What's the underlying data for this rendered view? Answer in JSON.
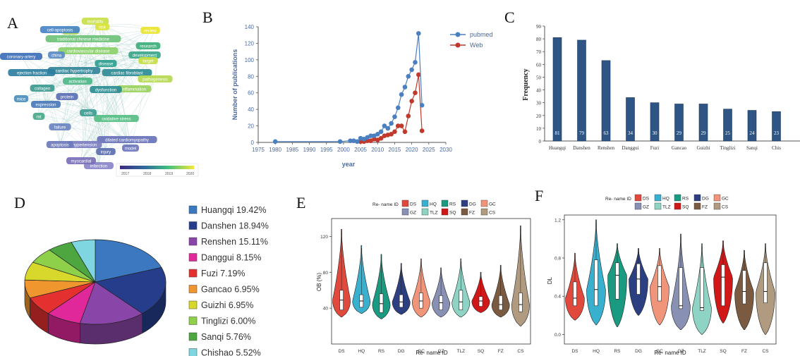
{
  "panels": {
    "a": "A",
    "b": "B",
    "c": "C",
    "d": "D",
    "e": "E",
    "f": "F"
  },
  "network": {
    "colorbar_ticks": [
      "2017",
      "2018",
      "2019",
      "2020"
    ],
    "nodes": [
      {
        "label": "mortality",
        "color": "#c9e04a"
      },
      {
        "label": "risk",
        "color": "#d9e33a"
      },
      {
        "label": "review",
        "color": "#e8e52f"
      },
      {
        "label": "heart",
        "color": "#a8d454"
      },
      {
        "label": "cell-apoptosis",
        "color": "#4a86c6"
      },
      {
        "label": "traditional chinese medicine",
        "color": "#6fc27a"
      },
      {
        "label": "research",
        "color": "#3fae7c"
      },
      {
        "label": "cardiovascular disease",
        "color": "#8bd06a"
      },
      {
        "label": "development",
        "color": "#3aa58a"
      },
      {
        "label": "coronary-artery",
        "color": "#3d6fb8"
      },
      {
        "label": "china",
        "color": "#5a8cc6"
      },
      {
        "label": "target",
        "color": "#c6de47"
      },
      {
        "label": "disease",
        "color": "#2f9e8f"
      },
      {
        "label": "cardiac hypertrophy",
        "color": "#34869a"
      },
      {
        "label": "cardiac fibroblast",
        "color": "#2d8b95"
      },
      {
        "label": "ejection fraction",
        "color": "#2e7fa0"
      },
      {
        "label": "pathogenesis",
        "color": "#b5d94e"
      },
      {
        "label": "inflammation",
        "color": "#9ad15d"
      },
      {
        "label": "collagen",
        "color": "#3d9a90"
      },
      {
        "label": "dysfunction",
        "color": "#2d8d94"
      },
      {
        "label": "activation",
        "color": "#4db787"
      },
      {
        "label": "protein",
        "color": "#5b6fb4"
      },
      {
        "label": "expression",
        "color": "#4a7ab8"
      },
      {
        "label": "oxidative stress",
        "color": "#56bd83"
      },
      {
        "label": "failure",
        "color": "#6a84c0"
      },
      {
        "label": "rat",
        "color": "#4aa98a"
      },
      {
        "label": "dilated cardiomyopathy",
        "color": "#6872b8"
      },
      {
        "label": "hypertension",
        "color": "#7b7ec0"
      },
      {
        "label": "apoptosis",
        "color": "#6b79bb"
      },
      {
        "label": "injury",
        "color": "#5c6eb0"
      },
      {
        "label": "mice",
        "color": "#4c8fbd"
      },
      {
        "label": "cells",
        "color": "#3f9c93"
      },
      {
        "label": "infarction",
        "color": "#8a86c8"
      },
      {
        "label": "myocardial",
        "color": "#7a70b8"
      },
      {
        "label": "model",
        "color": "#6e75ba"
      }
    ]
  },
  "chart_data": [
    {
      "type": "line",
      "xlabel": "year",
      "ylabel": "Number of publications",
      "xlim": [
        1975,
        2030
      ],
      "ylim": [
        0,
        140
      ],
      "xticks": [
        "1975",
        "1980",
        "1985",
        "1990",
        "1995",
        "2000",
        "2005",
        "2010",
        "2015",
        "2020",
        "2025",
        "2030"
      ],
      "yticks": [
        "0",
        "20",
        "40",
        "60",
        "80",
        "100",
        "120",
        "140"
      ],
      "legend": "top-right",
      "series": [
        {
          "name": "pubmed",
          "color": "#4a7fc0",
          "x": [
            1980,
            1999,
            2002,
            2003,
            2004,
            2005,
            2006,
            2007,
            2008,
            2009,
            2010,
            2011,
            2012,
            2013,
            2014,
            2015,
            2016,
            2017,
            2018,
            2019,
            2020,
            2021,
            2022,
            2023
          ],
          "y": [
            1,
            1,
            2,
            2,
            1,
            5,
            4,
            6,
            8,
            8,
            10,
            13,
            20,
            17,
            23,
            31,
            42,
            58,
            67,
            80,
            88,
            97,
            132,
            45
          ]
        },
        {
          "name": "Web",
          "color": "#c0392b",
          "x": [
            2005,
            2006,
            2007,
            2008,
            2009,
            2010,
            2011,
            2012,
            2013,
            2014,
            2015,
            2016,
            2017,
            2018,
            2019,
            2020,
            2021,
            2022,
            2023
          ],
          "y": [
            1,
            1,
            2,
            2,
            4,
            3,
            5,
            8,
            9,
            10,
            13,
            20,
            20,
            13,
            32,
            50,
            60,
            82,
            14
          ]
        }
      ]
    },
    {
      "type": "bar",
      "ylabel": "Frequency",
      "ylim": [
        0,
        90
      ],
      "yticks": [
        "0",
        "10",
        "20",
        "30",
        "40",
        "50",
        "60",
        "70",
        "80",
        "90"
      ],
      "categories": [
        "Huangqi",
        "Danshen",
        "Renshen",
        "Danggui",
        "Fuzi",
        "Gancao",
        "Guizhi",
        "Tinglizi",
        "Sanqi",
        "Chis"
      ],
      "values": [
        81,
        79,
        63,
        34,
        30,
        29,
        29,
        25,
        24,
        23
      ],
      "value_labels": [
        "81",
        "79",
        "63",
        "34",
        "30",
        "29",
        "29",
        "25",
        "24",
        "23"
      ],
      "color": "#2e5584"
    },
    {
      "type": "pie",
      "labels": [
        "Huangqi 19.42%",
        "Danshen 18.94%",
        "Renshen 15.11%",
        "Danggui 8.15%",
        "Fuzi 7.19%",
        "Gancao 6.95%",
        "Guizhi 6.95%",
        "Tinglizi 6.00%",
        "Sanqi 5.76%",
        "Chishao 5.52%"
      ],
      "values": [
        19.42,
        18.94,
        15.11,
        8.15,
        7.19,
        6.95,
        6.95,
        6.0,
        5.76,
        5.52
      ],
      "colors": [
        "#3b78c0",
        "#263d8c",
        "#8a45a8",
        "#e0289a",
        "#e53030",
        "#f0962e",
        "#d8d82c",
        "#8fd04a",
        "#4da640",
        "#7fd6e0"
      ],
      "legend": "right"
    },
    {
      "type": "violin",
      "legend_title": "Re- name ID",
      "xlabel": "Re- name ID",
      "ylabel": "OB (%)",
      "ylim": [
        0,
        140
      ],
      "yticks": [
        "40",
        "80",
        "120"
      ],
      "categories": [
        "DS",
        "HQ",
        "RS",
        "DG",
        "GC",
        "GZ",
        "TLZ",
        "SQ",
        "FZ",
        "CS"
      ],
      "medians": [
        49,
        48,
        45,
        47,
        48,
        46,
        47,
        48,
        44,
        44
      ],
      "q1": [
        38,
        41,
        35,
        41,
        40,
        38,
        38,
        42,
        38,
        36
      ],
      "q3": [
        60,
        55,
        56,
        55,
        57,
        54,
        60,
        53,
        54,
        57
      ],
      "min": [
        30,
        34,
        28,
        33,
        30,
        30,
        30,
        35,
        30,
        20
      ],
      "max": [
        128,
        110,
        100,
        90,
        95,
        85,
        95,
        80,
        88,
        132
      ]
    },
    {
      "type": "violin",
      "legend_title": "Re- name ID",
      "xlabel": "Re- name ID",
      "ylabel": "DL",
      "ylim": [
        -0.1,
        1.25
      ],
      "yticks": [
        "0.0",
        "0.4",
        "0.8",
        "1.2"
      ],
      "categories": [
        "DS",
        "HQ",
        "RS",
        "DG",
        "GC",
        "GZ",
        "TLZ",
        "SQ",
        "FZ",
        "CS"
      ],
      "medians": [
        0.38,
        0.47,
        0.62,
        0.58,
        0.5,
        0.3,
        0.28,
        0.6,
        0.45,
        0.45
      ],
      "q1": [
        0.3,
        0.3,
        0.37,
        0.42,
        0.35,
        0.27,
        0.25,
        0.3,
        0.32,
        0.33
      ],
      "q3": [
        0.55,
        0.78,
        0.75,
        0.74,
        0.72,
        0.7,
        0.7,
        0.73,
        0.67,
        0.75
      ],
      "min": [
        0.15,
        0.1,
        0.08,
        0.2,
        0.1,
        0.05,
        0.0,
        0.12,
        0.05,
        0.0
      ],
      "max": [
        0.85,
        1.2,
        0.95,
        0.9,
        0.9,
        1.05,
        0.95,
        0.98,
        0.88,
        0.95
      ]
    }
  ],
  "violin_colors": {
    "DS": "#e0493c",
    "HQ": "#3ab0cf",
    "RS": "#1a9a80",
    "DG": "#2c3f80",
    "GC": "#f0957a",
    "GZ": "#8890b4",
    "TLZ": "#8fd3c4",
    "SQ": "#d01818",
    "FZ": "#7a5a40",
    "CS": "#b09a80"
  }
}
